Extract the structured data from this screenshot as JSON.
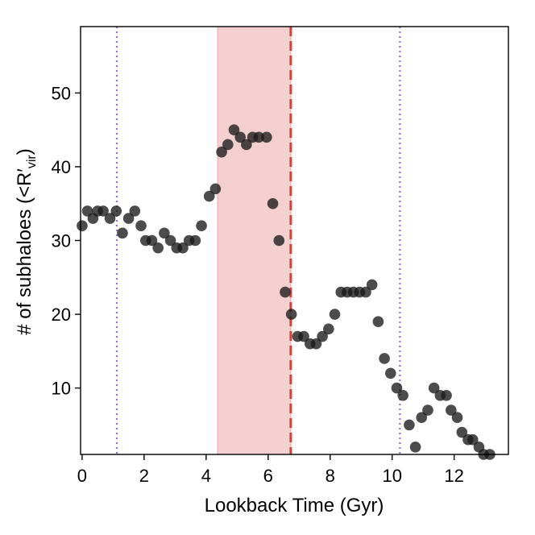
{
  "chart_data": {
    "type": "scatter",
    "title": "",
    "xlabel": "Lookback Time (Gyr)",
    "ylabel": {
      "prefix": "# of subhaloes (<R",
      "prime": "′",
      "sub": "vir",
      "suffix": ")"
    },
    "xlim": [
      -0.05,
      13.75
    ],
    "ylim": [
      1,
      59
    ],
    "xticks": [
      0,
      2,
      4,
      6,
      8,
      10,
      12
    ],
    "yticks": [
      10,
      20,
      30,
      40,
      50
    ],
    "shaded_region": {
      "x0": 4.37,
      "x1": 6.73,
      "color": "#f4cfcf"
    },
    "vlines": [
      {
        "x": 6.73,
        "style": "dashed",
        "color": "#d9403a"
      },
      {
        "x": 1.12,
        "style": "dotted",
        "color": "#9b72c8"
      },
      {
        "x": 10.25,
        "style": "dotted",
        "color": "#9b72c8"
      }
    ],
    "marker_color": "#1a1a1a",
    "x": [
      0.0,
      0.17,
      0.35,
      0.5,
      0.68,
      0.9,
      1.1,
      1.3,
      1.5,
      1.7,
      1.9,
      2.05,
      2.25,
      2.45,
      2.65,
      2.85,
      3.05,
      3.25,
      3.45,
      3.65,
      3.85,
      4.1,
      4.3,
      4.5,
      4.7,
      4.9,
      5.1,
      5.3,
      5.5,
      5.7,
      5.95,
      6.15,
      6.35,
      6.55,
      6.75,
      6.95,
      7.15,
      7.35,
      7.55,
      7.75,
      7.95,
      8.15,
      8.35,
      8.55,
      8.75,
      8.95,
      9.15,
      9.35,
      9.55,
      9.75,
      9.95,
      10.15,
      10.35,
      10.55,
      10.75,
      10.95,
      11.15,
      11.35,
      11.55,
      11.75,
      11.9,
      12.1,
      12.25,
      12.45,
      12.6,
      12.8,
      12.95,
      13.15
    ],
    "y": [
      32,
      34,
      33,
      34,
      34,
      33,
      34,
      31,
      33,
      34,
      32,
      30,
      30,
      29,
      31,
      30,
      29,
      29,
      30,
      30,
      32,
      36,
      37,
      42,
      43,
      45,
      44,
      43,
      44,
      44,
      44,
      35,
      30,
      23,
      20,
      17,
      17,
      16,
      16,
      17,
      18,
      20,
      23,
      23,
      23,
      23,
      23,
      24,
      19,
      14,
      12,
      10,
      9,
      5,
      2,
      6,
      7,
      10,
      9,
      9,
      7,
      6,
      4,
      3,
      3,
      2,
      1,
      1
    ]
  }
}
